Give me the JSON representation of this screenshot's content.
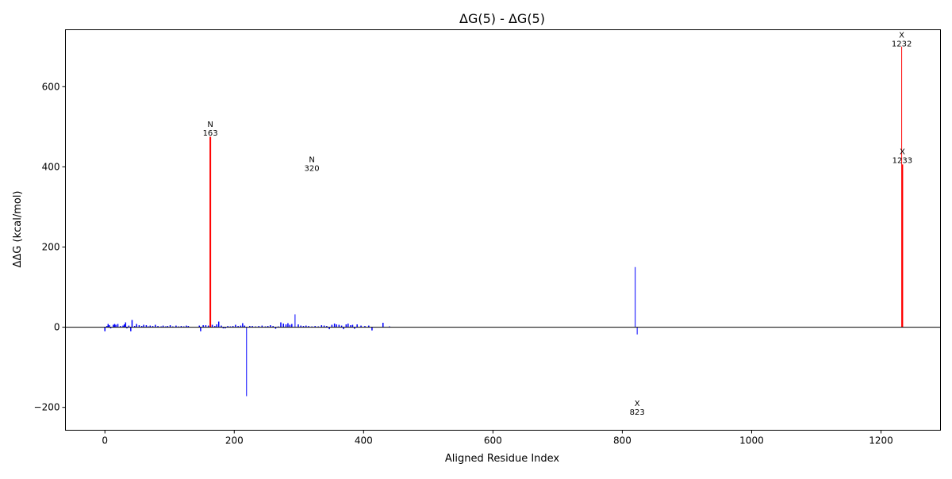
{
  "chart_data": {
    "type": "bar",
    "title": "ΔG(5) - ΔG(5)",
    "xlabel": "Aligned Residue Index",
    "ylabel": "ΔΔG (kcal/mol)",
    "xlim": [
      -61,
      1292
    ],
    "ylim": [
      -257,
      742
    ],
    "xticks": [
      0,
      200,
      400,
      600,
      800,
      1000,
      1200
    ],
    "yticks": [
      -200,
      0,
      200,
      400,
      600
    ],
    "xtick_labels": [
      "0",
      "200",
      "400",
      "600",
      "800",
      "1000",
      "1200"
    ],
    "ytick_labels": [
      "−200",
      "0",
      "200",
      "400",
      "600"
    ],
    "grid": false,
    "colors": {
      "default": "#0000ff",
      "highlight": "#ff0000",
      "zero_line": "#000000"
    },
    "bars": [
      {
        "x": 163,
        "y": 475,
        "color": "#ff0000",
        "width": 2
      },
      {
        "x": 1232,
        "y": 700,
        "color": "#ff0000",
        "width": 1
      },
      {
        "x": 1233,
        "y": 406,
        "color": "#ff0000",
        "width": 2
      },
      {
        "x": 820,
        "y": 150,
        "color": "#0000ff",
        "width": 1
      },
      {
        "x": 823,
        "y": -18,
        "color": "#0000ff",
        "width": 1
      },
      {
        "x": 219,
        "y": -172,
        "color": "#0000ff",
        "width": 1
      },
      {
        "x": 294,
        "y": 32,
        "color": "#0000ff",
        "width": 1
      },
      {
        "x": 0,
        "y": -10
      },
      {
        "x": 3,
        "y": 3
      },
      {
        "x": 5,
        "y": 8
      },
      {
        "x": 7,
        "y": 5
      },
      {
        "x": 9,
        "y": -3
      },
      {
        "x": 13,
        "y": 6
      },
      {
        "x": 15,
        "y": 8
      },
      {
        "x": 17,
        "y": 6
      },
      {
        "x": 20,
        "y": 8
      },
      {
        "x": 24,
        "y": 3
      },
      {
        "x": 28,
        "y": 4
      },
      {
        "x": 30,
        "y": 7
      },
      {
        "x": 32,
        "y": 12
      },
      {
        "x": 34,
        "y": -3
      },
      {
        "x": 37,
        "y": 4
      },
      {
        "x": 40,
        "y": -10
      },
      {
        "x": 42,
        "y": 18
      },
      {
        "x": 46,
        "y": 3
      },
      {
        "x": 49,
        "y": 8
      },
      {
        "x": 53,
        "y": 5
      },
      {
        "x": 57,
        "y": 3
      },
      {
        "x": 60,
        "y": 6
      },
      {
        "x": 64,
        "y": 5
      },
      {
        "x": 67,
        "y": 2
      },
      {
        "x": 70,
        "y": 4
      },
      {
        "x": 74,
        "y": 3
      },
      {
        "x": 78,
        "y": 6
      },
      {
        "x": 82,
        "y": 3
      },
      {
        "x": 87,
        "y": 2
      },
      {
        "x": 90,
        "y": 4
      },
      {
        "x": 94,
        "y": 2
      },
      {
        "x": 97,
        "y": 3
      },
      {
        "x": 101,
        "y": 5
      },
      {
        "x": 105,
        "y": 2
      },
      {
        "x": 110,
        "y": 4
      },
      {
        "x": 114,
        "y": 2
      },
      {
        "x": 118,
        "y": 3
      },
      {
        "x": 122,
        "y": 2
      },
      {
        "x": 126,
        "y": 4
      },
      {
        "x": 129,
        "y": 3
      },
      {
        "x": 146,
        "y": 4
      },
      {
        "x": 148,
        "y": -10
      },
      {
        "x": 152,
        "y": 5
      },
      {
        "x": 156,
        "y": 5
      },
      {
        "x": 160,
        "y": 4
      },
      {
        "x": 166,
        "y": 6
      },
      {
        "x": 170,
        "y": 3
      },
      {
        "x": 173,
        "y": 7
      },
      {
        "x": 176,
        "y": 14
      },
      {
        "x": 180,
        "y": 4
      },
      {
        "x": 183,
        "y": -3
      },
      {
        "x": 186,
        "y": -3
      },
      {
        "x": 190,
        "y": 3
      },
      {
        "x": 194,
        "y": 2
      },
      {
        "x": 198,
        "y": 3
      },
      {
        "x": 202,
        "y": 6
      },
      {
        "x": 206,
        "y": 3
      },
      {
        "x": 210,
        "y": 4
      },
      {
        "x": 213,
        "y": 10
      },
      {
        "x": 216,
        "y": 4
      },
      {
        "x": 224,
        "y": 3
      },
      {
        "x": 228,
        "y": 3
      },
      {
        "x": 233,
        "y": 2
      },
      {
        "x": 238,
        "y": 3
      },
      {
        "x": 243,
        "y": 4
      },
      {
        "x": 248,
        "y": 2
      },
      {
        "x": 252,
        "y": 3
      },
      {
        "x": 256,
        "y": 5
      },
      {
        "x": 260,
        "y": 3
      },
      {
        "x": 264,
        "y": -4
      },
      {
        "x": 268,
        "y": 2
      },
      {
        "x": 272,
        "y": 12
      },
      {
        "x": 276,
        "y": 9
      },
      {
        "x": 280,
        "y": 7
      },
      {
        "x": 283,
        "y": 10
      },
      {
        "x": 286,
        "y": 6
      },
      {
        "x": 289,
        "y": 8
      },
      {
        "x": 299,
        "y": 7
      },
      {
        "x": 303,
        "y": 4
      },
      {
        "x": 307,
        "y": 3
      },
      {
        "x": 311,
        "y": 4
      },
      {
        "x": 315,
        "y": 3
      },
      {
        "x": 320,
        "y": 2
      },
      {
        "x": 325,
        "y": 3
      },
      {
        "x": 330,
        "y": 2
      },
      {
        "x": 335,
        "y": 5
      },
      {
        "x": 339,
        "y": 4
      },
      {
        "x": 343,
        "y": 3
      },
      {
        "x": 347,
        "y": -5
      },
      {
        "x": 351,
        "y": 6
      },
      {
        "x": 355,
        "y": 9
      },
      {
        "x": 358,
        "y": 7
      },
      {
        "x": 362,
        "y": 6
      },
      {
        "x": 366,
        "y": 4
      },
      {
        "x": 369,
        "y": -5
      },
      {
        "x": 373,
        "y": 7
      },
      {
        "x": 376,
        "y": 9
      },
      {
        "x": 380,
        "y": 5
      },
      {
        "x": 383,
        "y": 6
      },
      {
        "x": 386,
        "y": -4
      },
      {
        "x": 390,
        "y": 7
      },
      {
        "x": 396,
        "y": 4
      },
      {
        "x": 402,
        "y": 3
      },
      {
        "x": 408,
        "y": 4
      },
      {
        "x": 413,
        "y": -8
      },
      {
        "x": 430,
        "y": 11
      },
      {
        "x": 440,
        "y": 2
      }
    ],
    "annotations": [
      {
        "label": "N",
        "index": "163",
        "x": 163,
        "y": 478
      },
      {
        "label": "N",
        "index": "320",
        "x": 320,
        "y": 390
      },
      {
        "label": "X",
        "index": "1232",
        "x": 1232,
        "y": 700
      },
      {
        "label": "X",
        "index": "1233",
        "x": 1233,
        "y": 410
      },
      {
        "label": "X",
        "index": "823",
        "x": 823,
        "y": -218
      }
    ]
  }
}
